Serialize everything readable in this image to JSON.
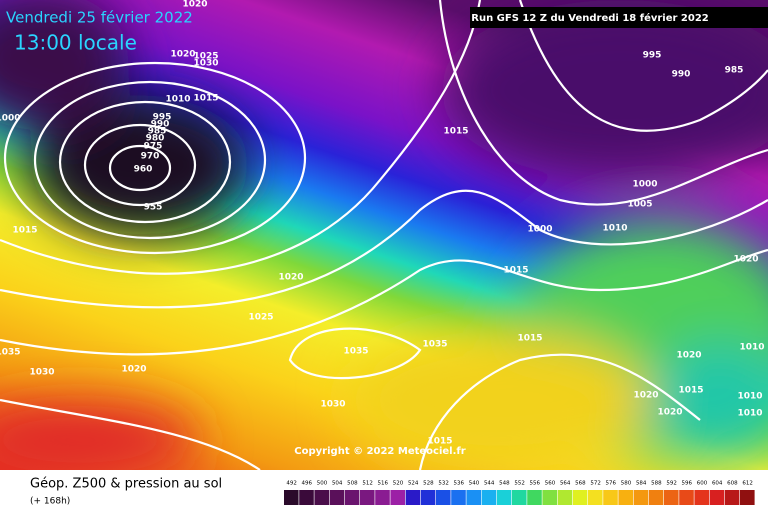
{
  "header": {
    "date": "Vendredi 25 février 2022",
    "time": "13:00 locale",
    "run": "Run GFS 12 Z du Vendredi 18 février 2022"
  },
  "isobar_labels": [
    "1020",
    "1020",
    "1025",
    "1030",
    "1010",
    "1015",
    "995",
    "990",
    "985",
    "980",
    "975",
    "970",
    "960",
    "955",
    "1000",
    "1015",
    "1015",
    "995",
    "990",
    "985",
    "1000",
    "1005",
    "1010",
    "1000",
    "1015",
    "1020",
    "1020",
    "1025",
    "1035",
    "1035",
    "1030",
    "1020",
    "1030",
    "1035",
    "1015",
    "1020",
    "1010",
    "1015",
    "1020",
    "1010",
    "1020",
    "1010",
    "1015"
  ],
  "copyright": "Copyright © 2022 Meteociel.fr",
  "footer": {
    "title": "Géop. Z500 & pression au sol",
    "lead": "(+ 168h)"
  },
  "legend": {
    "values": [
      492,
      496,
      500,
      504,
      508,
      512,
      516,
      520,
      524,
      528,
      532,
      536,
      540,
      544,
      548,
      552,
      556,
      560,
      564,
      568,
      572,
      576,
      580,
      584,
      588,
      592,
      596,
      600,
      604,
      608,
      612
    ]
  }
}
